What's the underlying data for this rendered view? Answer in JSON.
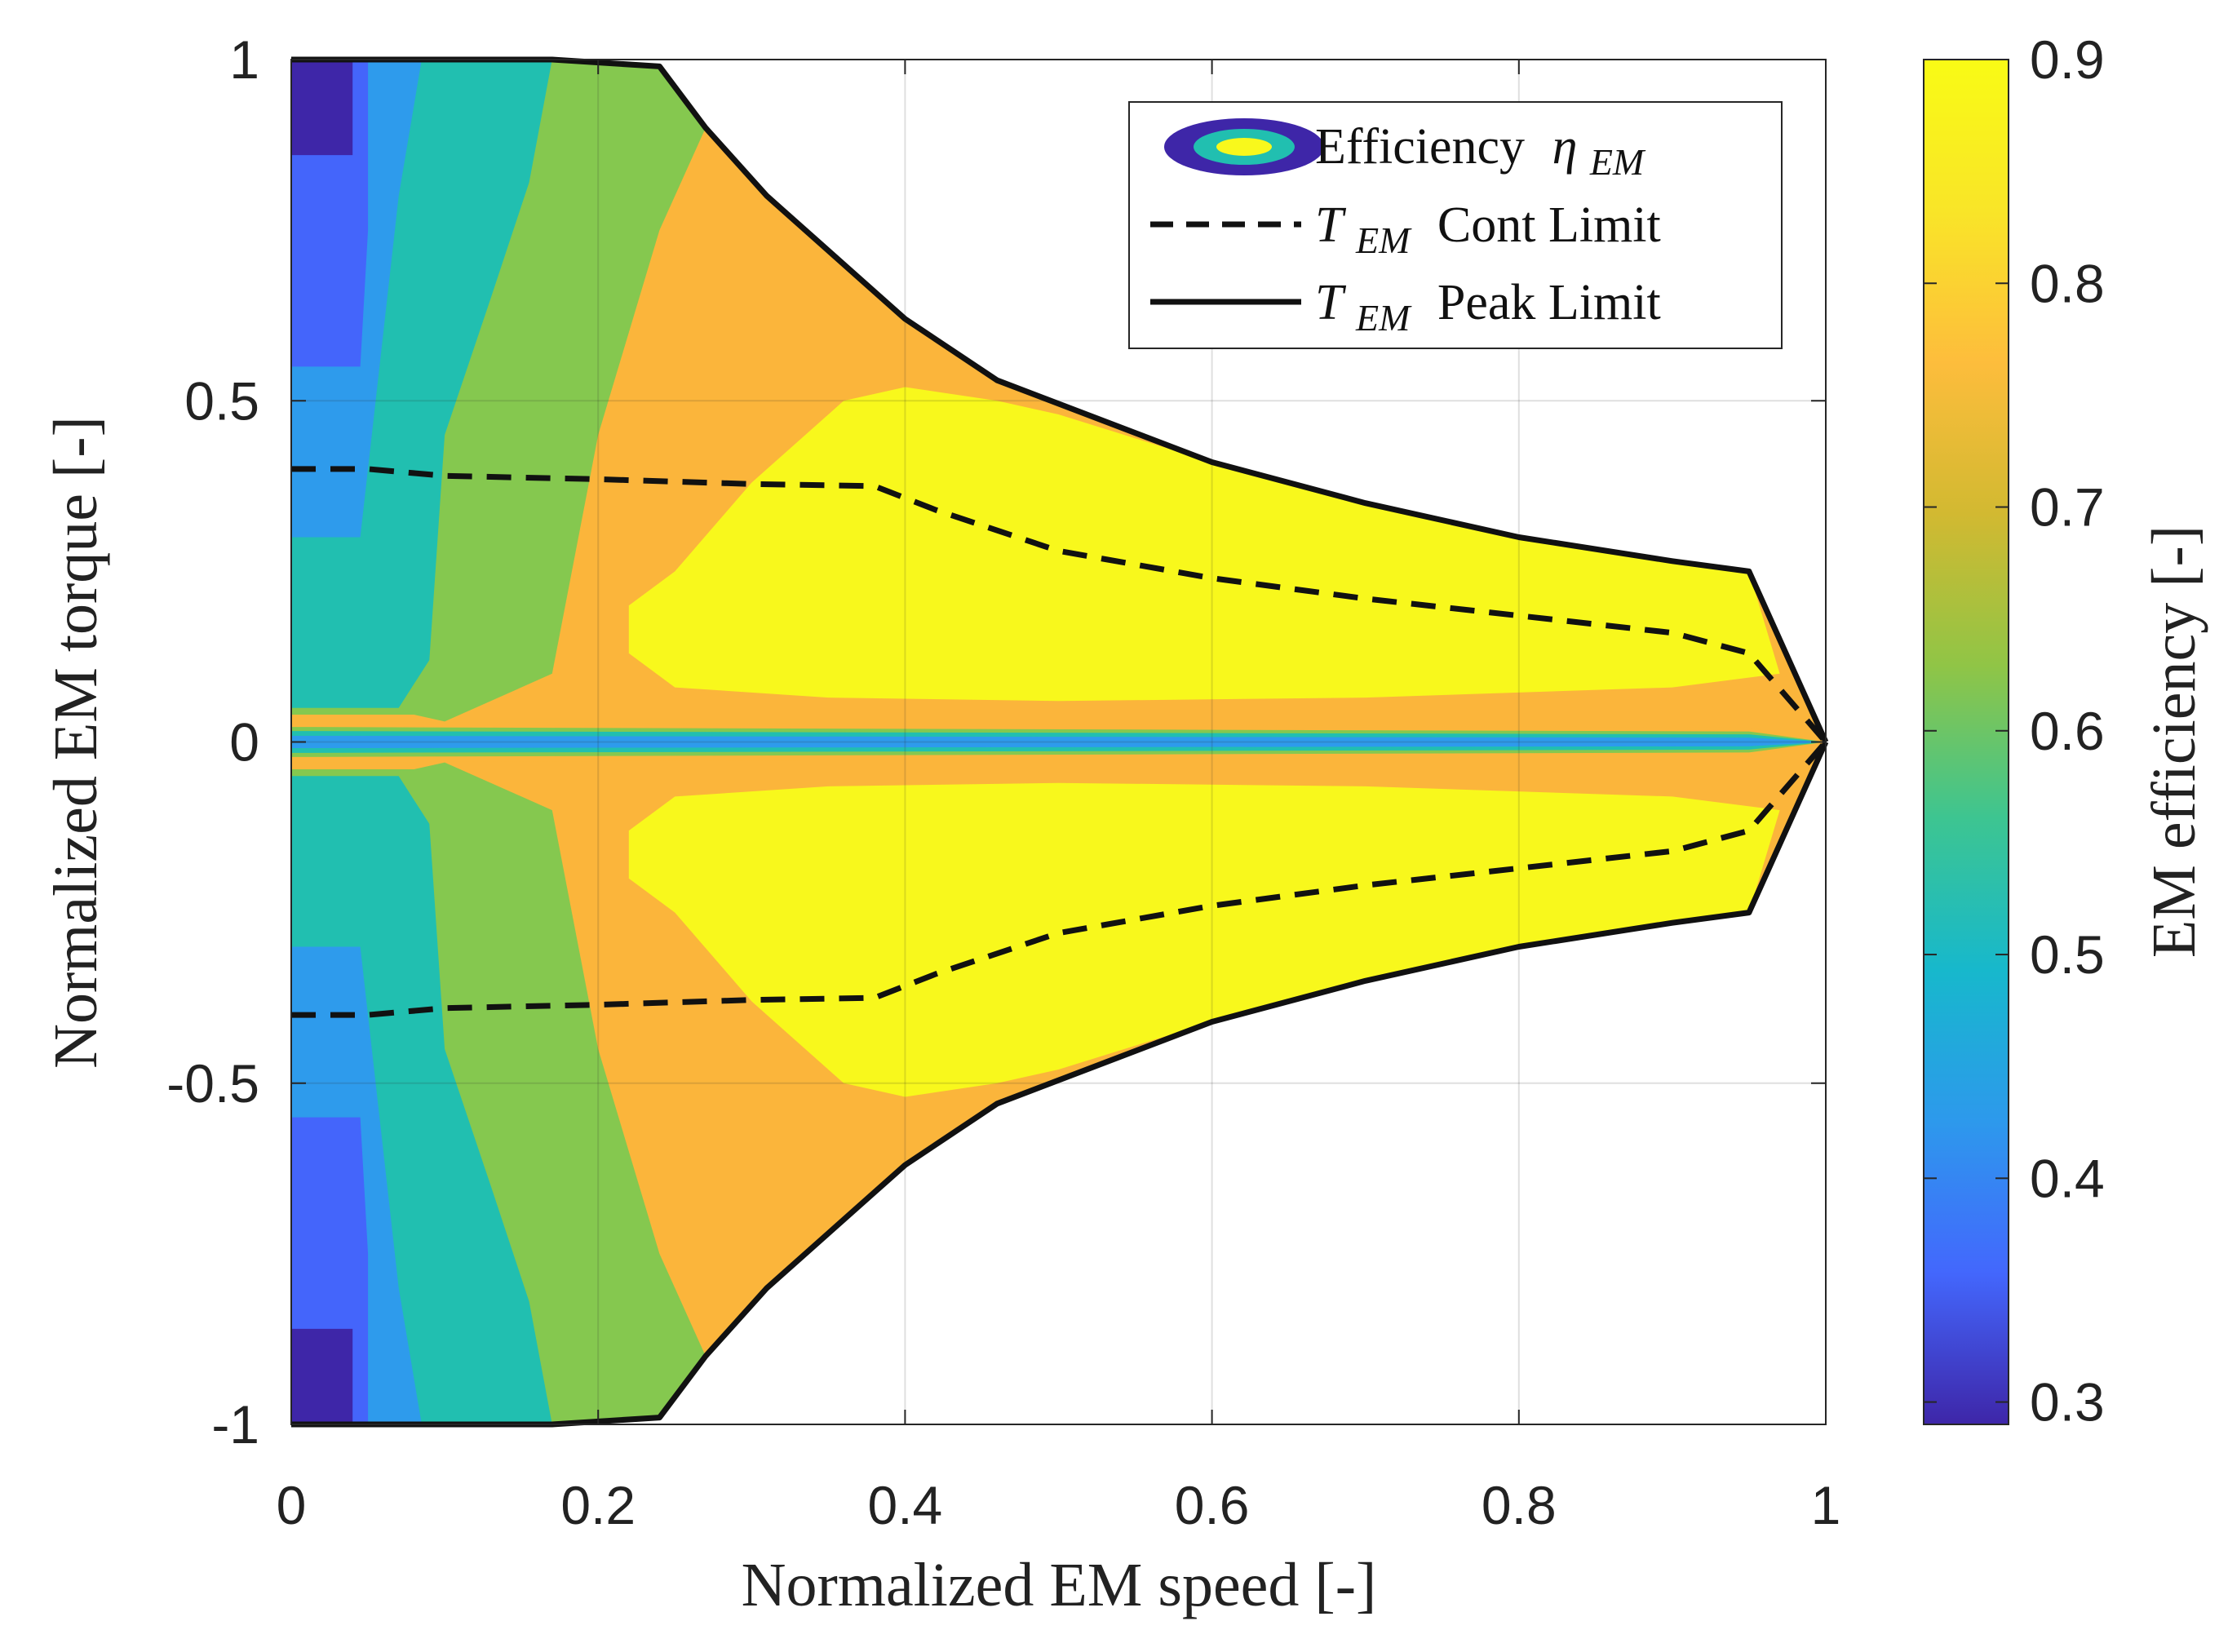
{
  "chart_data": {
    "type": "contour",
    "xlabel": "Normalized EM speed [-]",
    "ylabel": "Normalized EM torque [-]",
    "colorbar_label": "EM efficiency [-]",
    "xlim": [
      0,
      1
    ],
    "ylim": [
      -1,
      1
    ],
    "x_ticks": [
      "0",
      "0.2",
      "0.4",
      "0.6",
      "0.8",
      "1"
    ],
    "y_ticks": [
      "1",
      "0.5",
      "0",
      "-0.5",
      "-1"
    ],
    "colorbar_ticks": [
      "0.9",
      "0.8",
      "0.7",
      "0.6",
      "0.5",
      "0.4",
      "0.3"
    ],
    "colorbar_range": [
      0.29,
      0.9
    ],
    "grid": true,
    "legend_position": "top-right",
    "legend": [
      {
        "label": "Efficiency",
        "sub": "η",
        "subscript": "EM",
        "style": "contour"
      },
      {
        "label": "T",
        "subscript": "EM",
        "suffix": "Cont Limit",
        "style": "dashed"
      },
      {
        "label": "T",
        "subscript": "EM",
        "suffix": "Peak Limit",
        "style": "solid"
      }
    ],
    "levels": [
      {
        "value": 0.33,
        "color": "#3e26a8"
      },
      {
        "value": 0.43,
        "color": "#4465fb"
      },
      {
        "value": 0.53,
        "color": "#2e9bec"
      },
      {
        "value": 0.63,
        "color": "#21bfb0"
      },
      {
        "value": 0.73,
        "color": "#85c84f"
      },
      {
        "value": 0.83,
        "color": "#fbb53b"
      },
      {
        "value": 0.9,
        "color": "#f8f81c"
      }
    ],
    "colormap": [
      "#3e26a8",
      "#4367fd",
      "#2d99ec",
      "#17b8cc",
      "#3dc591",
      "#90c546",
      "#d2b931",
      "#fdbd3c",
      "#f9e528",
      "#f9fb15"
    ],
    "peak_limit": {
      "x": [
        0,
        0.17,
        0.24,
        0.27,
        0.31,
        0.37,
        0.4,
        0.46,
        0.6,
        0.7,
        0.8,
        0.9,
        0.95,
        1.0
      ],
      "y": [
        1.0,
        1.0,
        0.99,
        0.9,
        0.8,
        0.68,
        0.62,
        0.53,
        0.41,
        0.35,
        0.3,
        0.265,
        0.25,
        0.0
      ]
    },
    "cont_limit": {
      "x": [
        0,
        0.05,
        0.1,
        0.2,
        0.3,
        0.38,
        0.42,
        0.5,
        0.6,
        0.7,
        0.8,
        0.9,
        0.95,
        1.0
      ],
      "y": [
        0.4,
        0.4,
        0.39,
        0.385,
        0.378,
        0.375,
        0.34,
        0.28,
        0.24,
        0.21,
        0.185,
        0.16,
        0.13,
        0.0
      ]
    },
    "regions": {
      "yellow": {
        "x": [
          0.95,
          0.9,
          0.8,
          0.7,
          0.6,
          0.5,
          0.46,
          0.4,
          0.36,
          0.3,
          0.25,
          0.22,
          0.22,
          0.25,
          0.35,
          0.5,
          0.7,
          0.9,
          0.97
        ],
        "y": [
          0.25,
          0.265,
          0.3,
          0.35,
          0.41,
          0.48,
          0.5,
          0.52,
          0.5,
          0.38,
          0.25,
          0.2,
          0.13,
          0.08,
          0.065,
          0.06,
          0.065,
          0.08,
          0.1
        ]
      },
      "green_outer": {
        "x": [
          0.17,
          0.24,
          0.27,
          0.24,
          0.22,
          0.2,
          0.17,
          0.1,
          0.08
        ],
        "y": [
          1.0,
          0.99,
          0.9,
          0.75,
          0.6,
          0.45,
          0.1,
          0.03,
          0.04
        ]
      },
      "teal_outer": {
        "x": [
          0.085,
          0.17,
          0.155,
          0.13,
          0.1,
          0.09,
          0.07,
          0.05
        ],
        "y": [
          1.0,
          1.0,
          0.82,
          0.65,
          0.45,
          0.12,
          0.05,
          0.05
        ]
      },
      "lightblue_outer": {
        "x": [
          0.05,
          0.085,
          0.07,
          0.06,
          0.045
        ],
        "y": [
          1.0,
          1.0,
          0.8,
          0.6,
          0.3
        ]
      },
      "blue_block": {
        "x": [
          0.0,
          0.05,
          0.05,
          0.045,
          0.0
        ],
        "y": [
          1.0,
          1.0,
          0.75,
          0.55,
          0.55
        ]
      },
      "dark_block": {
        "x": [
          0.0,
          0.04,
          0.04,
          0.0
        ],
        "y": [
          1.0,
          1.0,
          0.86,
          0.86
        ]
      }
    }
  }
}
